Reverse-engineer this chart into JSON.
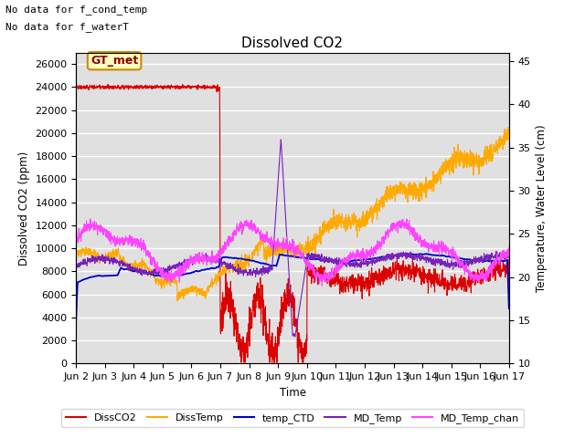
{
  "title": "Dissolved CO2",
  "xlabel": "Time",
  "ylabel_left": "Dissolved CO2 (ppm)",
  "ylabel_right": "Temperature, Water Level (cm)",
  "top_annotations": [
    "No data for f_cond_temp",
    "No data for f_waterT"
  ],
  "gt_met_label": "GT_met",
  "xlim_days": [
    0,
    15
  ],
  "x_tick_labels": [
    "Jun 2",
    "Jun 3",
    "Jun 4",
    "Jun 5",
    "Jun 6",
    "Jun 7",
    "Jun 8",
    "Jun 9",
    "Jun 10",
    "Jun 11",
    "Jun 12",
    "Jun 13",
    "Jun 14",
    "Jun 15",
    "Jun 16",
    "Jun 17"
  ],
  "ylim_left": [
    0,
    27000
  ],
  "ylim_right": [
    10,
    46
  ],
  "y_ticks_left": [
    0,
    2000,
    4000,
    6000,
    8000,
    10000,
    12000,
    14000,
    16000,
    18000,
    20000,
    22000,
    24000,
    26000
  ],
  "y_ticks_right": [
    10,
    15,
    20,
    25,
    30,
    35,
    40,
    45
  ],
  "background_color": "#e0e0e0",
  "grid_color": "#ffffff",
  "series": {
    "DissCO2": {
      "color": "#dd0000",
      "lw": 1.0
    },
    "DissTemp": {
      "color": "#ffaa00",
      "lw": 1.0
    },
    "temp_CTD": {
      "color": "#0000cc",
      "lw": 1.5
    },
    "MD_Temp": {
      "color": "#7722bb",
      "lw": 1.0
    },
    "MD_Temp_chan": {
      "color": "#ff44ff",
      "lw": 1.0
    }
  },
  "legend_entries": [
    {
      "label": "DissCO2",
      "color": "#dd0000"
    },
    {
      "label": "DissTemp",
      "color": "#ffaa00"
    },
    {
      "label": "temp_CTD",
      "color": "#0000cc"
    },
    {
      "label": "MD_Temp",
      "color": "#7722bb"
    },
    {
      "label": "MD_Temp_chan",
      "color": "#ff44ff"
    }
  ]
}
